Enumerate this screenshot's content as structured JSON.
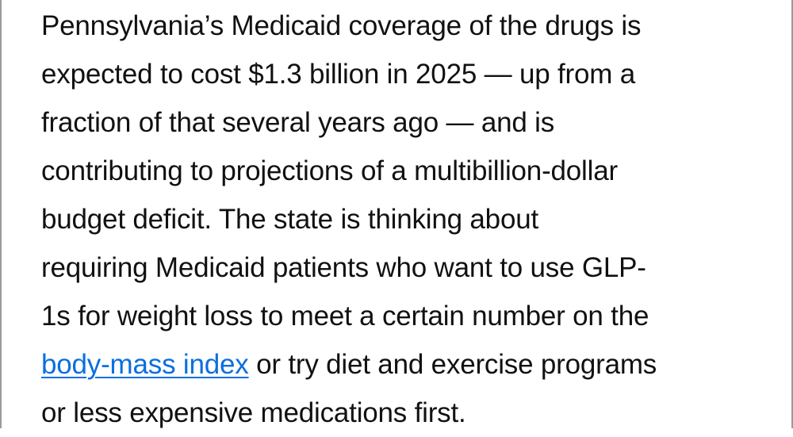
{
  "article": {
    "lines": [
      "Pennsylvania’s Medicaid coverage of the drugs is",
      "expected to cost $1.3 billion in 2025 — up from a",
      "fraction of that several years ago — and is",
      "contributing to projections of a multibillion-dollar",
      "budget deficit. The state is thinking about",
      "requiring Medicaid patients who want to use GLP-",
      "1s for weight loss to meet a certain number on the"
    ],
    "link_text": "body-mass index",
    "after_link": " or try diet and exercise programs",
    "last_line": "or less expensive medications first.",
    "link_color": "#0a6fe0"
  }
}
